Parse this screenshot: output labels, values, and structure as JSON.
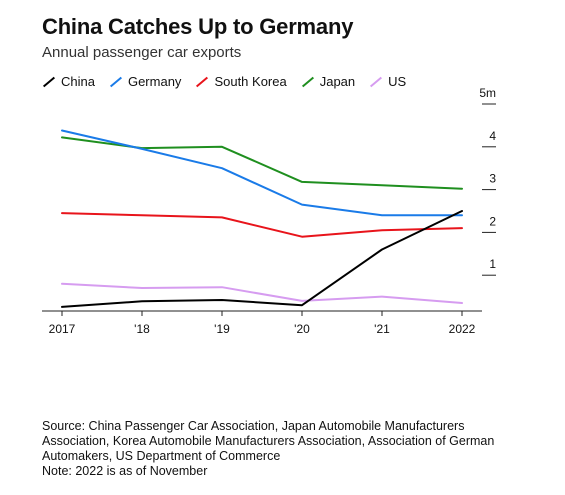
{
  "header": {
    "title": "China Catches Up to Germany",
    "subtitle": "Annual passenger car exports"
  },
  "chart_data": {
    "type": "line",
    "x": [
      "2017",
      "'18",
      "'19",
      "'20",
      "'21",
      "2022"
    ],
    "y_ticks": [
      "5m",
      "4",
      "3",
      "2",
      "1"
    ],
    "ylim": [
      0,
      5
    ],
    "grid": false,
    "legend_position": "top-left",
    "series": [
      {
        "name": "China",
        "color": "#000000",
        "values": [
          0.26,
          0.39,
          0.42,
          0.3,
          1.6,
          2.5
        ]
      },
      {
        "name": "Germany",
        "color": "#1a7be8",
        "values": [
          4.38,
          3.95,
          3.5,
          2.65,
          2.4,
          2.4
        ]
      },
      {
        "name": "South Korea",
        "color": "#e8141b",
        "values": [
          2.45,
          2.4,
          2.35,
          1.9,
          2.05,
          2.1
        ]
      },
      {
        "name": "Japan",
        "color": "#1f8f1f",
        "values": [
          4.22,
          3.97,
          4.0,
          3.18,
          3.1,
          3.02
        ]
      },
      {
        "name": "US",
        "color": "#d69cf0",
        "values": [
          0.8,
          0.7,
          0.72,
          0.4,
          0.5,
          0.35
        ]
      }
    ]
  },
  "footer": {
    "source": "Source: China Passenger Car Association, Japan Automobile Manufacturers Association, Korea Automobile Manufacturers Association, Association of German Automakers, US Department of Commerce",
    "note": "Note: 2022 is as of November"
  }
}
